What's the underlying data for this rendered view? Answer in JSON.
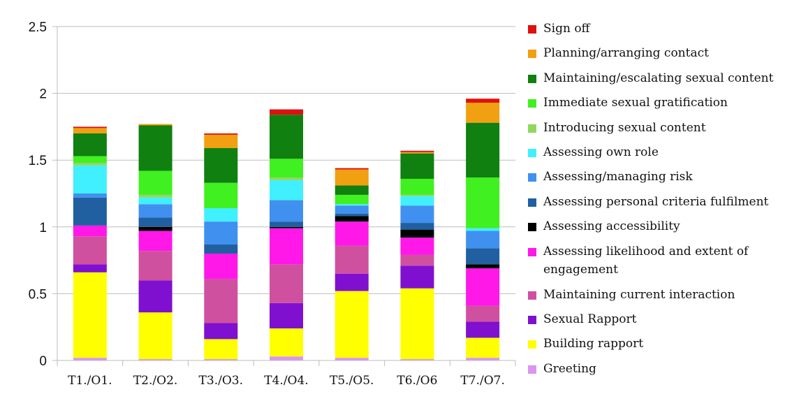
{
  "chart_data": {
    "type": "bar",
    "stacked": true,
    "categories": [
      "T1./O1.",
      "T2./O2.",
      "T3./O3.",
      "T4./O4.",
      "T5./O5.",
      "T6./O6",
      "T7./O7."
    ],
    "ylim": [
      0,
      2.5
    ],
    "yticks": [
      "0",
      "0.5",
      "1",
      "1.5",
      "2",
      "2.5"
    ],
    "ytick_values": [
      0,
      0.5,
      1,
      1.5,
      2,
      2.5
    ],
    "grid": true,
    "legend_position": "right",
    "series": [
      {
        "name": "Greeting",
        "color": "#d896f0",
        "values": [
          0.02,
          0.01,
          0.01,
          0.03,
          0.02,
          0.01,
          0.02
        ]
      },
      {
        "name": "Building rapport",
        "color": "#ffff00",
        "values": [
          0.64,
          0.35,
          0.15,
          0.21,
          0.5,
          0.53,
          0.15
        ]
      },
      {
        "name": "Sexual Rapport",
        "color": "#8010d0",
        "values": [
          0.06,
          0.24,
          0.12,
          0.19,
          0.13,
          0.17,
          0.12
        ]
      },
      {
        "name": "Maintaining current interaction",
        "color": "#d050a0",
        "values": [
          0.21,
          0.22,
          0.33,
          0.29,
          0.21,
          0.08,
          0.12
        ]
      },
      {
        "name": "Assessing likelihood and extent of engagement",
        "color": "#ff18e8",
        "values": [
          0.08,
          0.15,
          0.19,
          0.27,
          0.18,
          0.13,
          0.28
        ]
      },
      {
        "name": "Assessing accessibility",
        "color": "#000000",
        "values": [
          0.0,
          0.03,
          0.0,
          0.01,
          0.04,
          0.06,
          0.03
        ]
      },
      {
        "name": "Assessing personal criteria fulfilment",
        "color": "#2060a0",
        "values": [
          0.21,
          0.07,
          0.07,
          0.04,
          0.02,
          0.05,
          0.12
        ]
      },
      {
        "name": "Assessing/managing risk",
        "color": "#4090f0",
        "values": [
          0.03,
          0.1,
          0.17,
          0.16,
          0.06,
          0.13,
          0.13
        ]
      },
      {
        "name": "Assessing own role",
        "color": "#40f0ff",
        "values": [
          0.21,
          0.05,
          0.1,
          0.15,
          0.01,
          0.07,
          0.02
        ]
      },
      {
        "name": "Introducing sexual content",
        "color": "#90d860",
        "values": [
          0.02,
          0.02,
          0.0,
          0.02,
          0.0,
          0.01,
          0.0
        ]
      },
      {
        "name": "Immediate sexual gratification",
        "color": "#40f020",
        "values": [
          0.05,
          0.18,
          0.19,
          0.14,
          0.07,
          0.12,
          0.38
        ]
      },
      {
        "name": "Maintaining/escalating sexual content",
        "color": "#108010",
        "values": [
          0.17,
          0.34,
          0.26,
          0.33,
          0.07,
          0.19,
          0.41
        ]
      },
      {
        "name": "Planning/arranging contact",
        "color": "#f0a010",
        "values": [
          0.04,
          0.01,
          0.1,
          0.0,
          0.12,
          0.01,
          0.15
        ]
      },
      {
        "name": "Sign off",
        "color": "#e01010",
        "values": [
          0.01,
          0.0,
          0.01,
          0.04,
          0.01,
          0.01,
          0.03
        ]
      }
    ]
  }
}
